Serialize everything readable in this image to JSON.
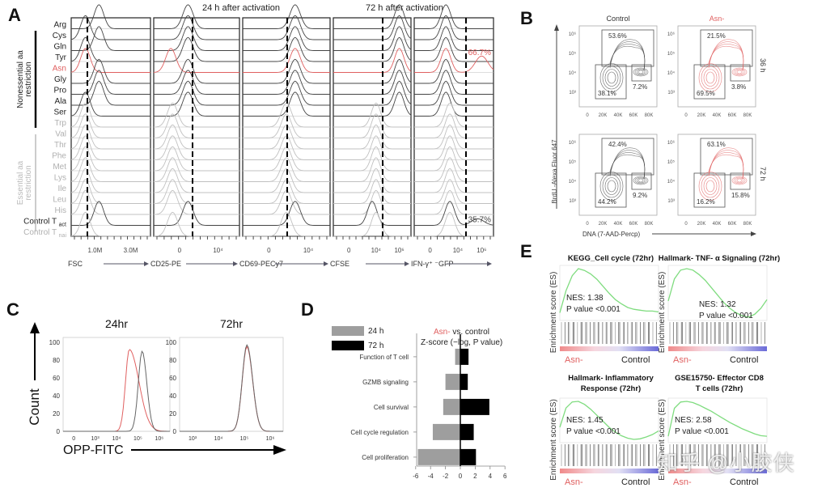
{
  "panels": {
    "A": {
      "label": "A"
    },
    "B": {
      "label": "B"
    },
    "C": {
      "label": "C"
    },
    "D": {
      "label": "D"
    },
    "E": {
      "label": "E"
    }
  },
  "colors": {
    "asn": "#e06060",
    "control": "#333333",
    "essential": "#b0b0b0",
    "gsea_line": "#7fdc7f",
    "bar24": "#9e9e9e",
    "bar72": "#000000"
  },
  "chart_data": [
    {
      "id": "A",
      "type": "histogram-stack",
      "title_left": "24 h after activation",
      "title_right": "72 h after activation",
      "group_labels": [
        "Nonessential aa restriction",
        "Essential aa restriction"
      ],
      "rows": [
        "Arg",
        "Cys",
        "Gln",
        "Tyr",
        "Asn",
        "Gly",
        "Pro",
        "Ala",
        "Ser",
        "Trp",
        "Val",
        "Thr",
        "Phe",
        "Met",
        "Lys",
        "Ile",
        "Leu",
        "His",
        "Control T_act",
        "Control T_nai"
      ],
      "row_groups": [
        "nonessential",
        "nonessential",
        "nonessential",
        "nonessential",
        "nonessential",
        "nonessential",
        "nonessential",
        "nonessential",
        "nonessential",
        "essential",
        "essential",
        "essential",
        "essential",
        "essential",
        "essential",
        "essential",
        "essential",
        "essential",
        "control",
        "control"
      ],
      "highlight_row": "Asn",
      "panels": [
        {
          "xlabel": "FSC",
          "ticks": [
            "1.0M",
            "3.0M"
          ],
          "time": "24 h"
        },
        {
          "xlabel": "CD25-PE",
          "ticks": [
            "0",
            "10⁴"
          ],
          "time": "24 h"
        },
        {
          "xlabel": "CD69-PECy7",
          "ticks": [
            "0",
            "10⁴"
          ],
          "time": "24 h"
        },
        {
          "xlabel": "CFSE",
          "ticks": [
            "0",
            "10⁴",
            "10⁶"
          ],
          "time": "72 h"
        },
        {
          "xlabel": "IFN-γ⁺ ⁻GFP",
          "ticks": [
            "0",
            "10⁴",
            "10⁶"
          ],
          "time": "72 h",
          "annotations": [
            {
              "row": "Asn",
              "text": "66.7%"
            },
            {
              "row": "Control T_act",
              "text": "35.7%"
            }
          ]
        }
      ]
    },
    {
      "id": "B",
      "type": "scatter-contour",
      "columns": [
        "Control",
        "Asn-"
      ],
      "rows": [
        "36 h",
        "72 h"
      ],
      "ylabel": "BrdU -Alexa Fluor 647",
      "xlabel": "DNA (7-AAD-Percp)",
      "yticks": [
        "10³",
        "10⁴",
        "10⁵",
        "10⁶"
      ],
      "xticks": [
        "0",
        "20K",
        "40K",
        "60K",
        "80K"
      ],
      "gates": {
        "36 h": {
          "Control": {
            "S": "53.6%",
            "G1": "38.1%",
            "G2M": "7.2%"
          },
          "Asn-": {
            "S": "21.5%",
            "G1": "69.5%",
            "G2M": "3.8%"
          }
        },
        "72 h": {
          "Control": {
            "S": "42.4%",
            "G1": "44.2%",
            "G2M": "9.2%"
          },
          "Asn-": {
            "S": "63.1%",
            "G1": "16.2%",
            "G2M": "15.8%"
          }
        }
      }
    },
    {
      "id": "C",
      "type": "histogram",
      "subplots": [
        {
          "title": "24hr",
          "xticks": [
            "0",
            "10³",
            "10⁴",
            "10⁵",
            "10⁶"
          ],
          "peaks": {
            "Asn-": {
              "x_log10": 4.6,
              "y": 92
            },
            "Control": {
              "x_log10": 5.2,
              "y": 90
            }
          }
        },
        {
          "title": "72hr",
          "xticks": [
            "10³",
            "10⁴",
            "10⁵",
            "10⁶"
          ],
          "peaks": {
            "Asn-": {
              "x_log10": 5.1,
              "y": 95
            },
            "Control": {
              "x_log10": 5.1,
              "y": 97
            }
          }
        }
      ],
      "ylabel": "Count",
      "xlabel": "OPP-FITC",
      "yticks": [
        0,
        20,
        40,
        60,
        80,
        100
      ],
      "ylim": [
        0,
        100
      ]
    },
    {
      "id": "D",
      "type": "bar",
      "orientation": "horizontal",
      "title_asn": "Asn-",
      "title_rest": " vs. control",
      "subtitle": "Z-score (−log, P value)",
      "legend": [
        {
          "name": "24 h"
        },
        {
          "name": "72 h"
        }
      ],
      "categories": [
        "Function of T cell",
        "GZMB signaling",
        "Cell survival",
        "Cell cycle regulation",
        "Cell proliferation"
      ],
      "series": [
        {
          "name": "24 h",
          "values": [
            -0.7,
            -2.0,
            -2.3,
            -3.7,
            -5.7
          ]
        },
        {
          "name": "72 h",
          "values": [
            1.1,
            1.0,
            3.9,
            1.8,
            2.1
          ]
        }
      ],
      "xticks": [
        -6,
        -4,
        -2,
        0,
        2,
        4,
        6
      ],
      "xlim": [
        -6,
        6
      ]
    },
    {
      "id": "E",
      "type": "line",
      "ylabel": "Enrichment score (ES)",
      "left_label": "Asn-",
      "right_label": "Control",
      "plots": [
        {
          "title": "KEGG_Cell cycle (72hr)",
          "nes": "NES: 1.38",
          "p": "P value <0.001",
          "es": [
            0.0,
            0.25,
            0.42,
            0.5,
            0.48,
            0.44,
            0.38,
            0.3,
            0.22,
            0.15,
            0.1,
            0.06,
            0.04,
            0.03,
            0.02,
            0.02,
            0.01
          ]
        },
        {
          "title": "Hallmark- TNF- α Signaling (72hr)",
          "nes": "NES: 1.32",
          "p": "P value <0.001",
          "es": [
            0.0,
            0.3,
            0.42,
            0.44,
            0.42,
            0.36,
            0.28,
            0.18,
            0.08,
            -0.02,
            -0.1,
            -0.16,
            -0.2,
            -0.22,
            -0.18,
            -0.1,
            0.02
          ]
        },
        {
          "title": "Hallmark- Inflammatory Response (72hr)",
          "nes": "NES: 1.45",
          "p": "P value <0.001",
          "es": [
            0.0,
            0.32,
            0.42,
            0.43,
            0.38,
            0.3,
            0.2,
            0.1,
            0.0,
            -0.08,
            -0.14,
            -0.18,
            -0.2,
            -0.19,
            -0.16,
            -0.12,
            -0.06
          ]
        },
        {
          "title": "GSE15750- Effector CD8 T cells (72hr)",
          "nes": "NES: 2.58",
          "p": "P value <0.001",
          "es": [
            0.0,
            0.45,
            0.55,
            0.56,
            0.54,
            0.5,
            0.45,
            0.4,
            0.34,
            0.28,
            0.22,
            0.17,
            0.12,
            0.08,
            0.04,
            0.01,
            0.0
          ]
        }
      ]
    }
  ],
  "watermark": "知乎 @小胶侠"
}
